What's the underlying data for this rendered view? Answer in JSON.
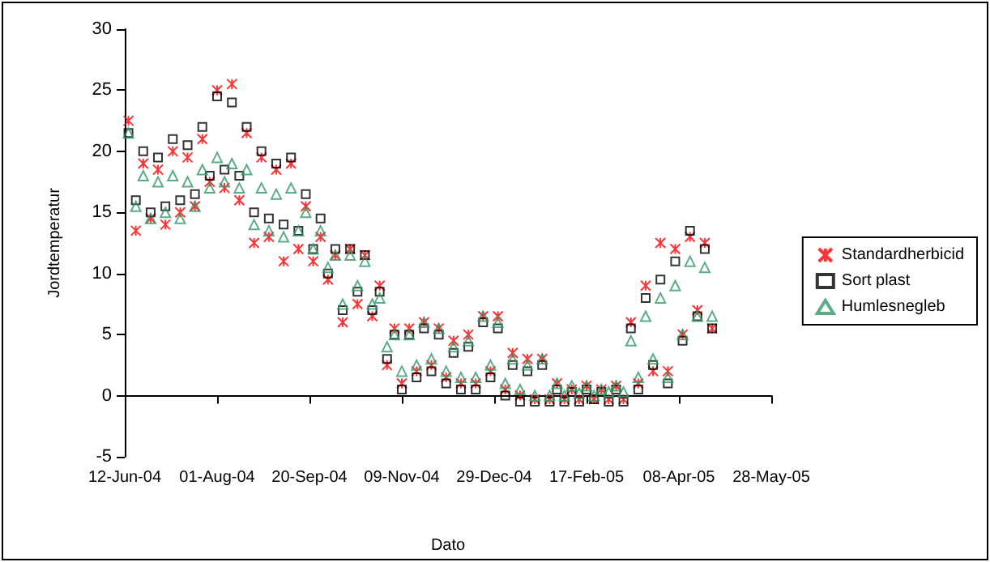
{
  "chart_data": {
    "type": "scatter",
    "xlabel": "Dato",
    "ylabel": "Jordtemperatur",
    "x": [
      "2004-06-14",
      "2004-06-18",
      "2004-06-22",
      "2004-06-26",
      "2004-06-30",
      "2004-07-04",
      "2004-07-08",
      "2004-07-12",
      "2004-07-16",
      "2004-07-20",
      "2004-07-24",
      "2004-07-28",
      "2004-08-01",
      "2004-08-05",
      "2004-08-09",
      "2004-08-13",
      "2004-08-17",
      "2004-08-21",
      "2004-08-25",
      "2004-08-29",
      "2004-09-02",
      "2004-09-06",
      "2004-09-10",
      "2004-09-14",
      "2004-09-18",
      "2004-09-22",
      "2004-09-26",
      "2004-09-30",
      "2004-10-04",
      "2004-10-08",
      "2004-10-12",
      "2004-10-16",
      "2004-10-20",
      "2004-10-24",
      "2004-10-28",
      "2004-11-01",
      "2004-11-05",
      "2004-11-09",
      "2004-11-13",
      "2004-11-17",
      "2004-11-21",
      "2004-11-25",
      "2004-11-29",
      "2004-12-03",
      "2004-12-07",
      "2004-12-11",
      "2004-12-15",
      "2004-12-19",
      "2004-12-23",
      "2004-12-27",
      "2004-12-31",
      "2005-01-04",
      "2005-01-08",
      "2005-01-12",
      "2005-01-16",
      "2005-01-20",
      "2005-01-24",
      "2005-01-28",
      "2005-02-01",
      "2005-02-05",
      "2005-02-09",
      "2005-02-13",
      "2005-02-17",
      "2005-02-21",
      "2005-02-25",
      "2005-03-01",
      "2005-03-05",
      "2005-03-09",
      "2005-03-13",
      "2005-03-17",
      "2005-03-21",
      "2005-03-25",
      "2005-03-29",
      "2005-04-02",
      "2005-04-06",
      "2005-04-10",
      "2005-04-14",
      "2005-04-18",
      "2005-04-22",
      "2005-04-26"
    ],
    "series": [
      {
        "name": "Standardherbicid",
        "color": "#ff0000",
        "marker": "cross",
        "values": [
          22.5,
          13.5,
          19,
          14.5,
          18.5,
          14,
          20,
          15,
          19.5,
          15.5,
          21,
          17.5,
          25,
          17,
          25.5,
          16,
          21.5,
          12.5,
          19.5,
          13,
          18.5,
          11,
          19,
          12,
          15.5,
          11,
          13,
          9.5,
          11.5,
          6,
          12,
          7.5,
          11.5,
          6.5,
          9,
          2.5,
          5.5,
          1,
          5.5,
          2,
          6,
          2.5,
          5.5,
          1.5,
          4.5,
          1,
          5,
          1,
          6.5,
          2,
          6.5,
          0.5,
          3.5,
          0,
          3,
          -0.3,
          3,
          -0.3,
          1,
          -0.3,
          0.5,
          -0.3,
          0.8,
          -0.3,
          0.5,
          -0.3,
          0.8,
          -0.3,
          6,
          1,
          9,
          2,
          12.5,
          2,
          12,
          5,
          13,
          7,
          12.5,
          5.5
        ]
      },
      {
        "name": "Sort plast",
        "color": "#000000",
        "marker": "square",
        "values": [
          21.5,
          16,
          20,
          15,
          19.5,
          15.5,
          21,
          16,
          20.5,
          16.5,
          22,
          18,
          24.5,
          18.5,
          24,
          18,
          22,
          15,
          20,
          14.5,
          19,
          14,
          19.5,
          13.5,
          16.5,
          12,
          14.5,
          10,
          12,
          7,
          12,
          8.5,
          11.5,
          7,
          8.5,
          3,
          5,
          0.5,
          5,
          1.5,
          5.5,
          2,
          5,
          1,
          3.5,
          0.5,
          4,
          0.5,
          6,
          1.5,
          5.5,
          0,
          2.5,
          -0.5,
          2,
          -0.5,
          2.5,
          -0.5,
          0.5,
          -0.5,
          0.3,
          -0.5,
          0.5,
          -0.3,
          0.3,
          -0.5,
          0.5,
          -0.5,
          5.5,
          0.5,
          8,
          2.5,
          9.5,
          1,
          11,
          4.5,
          13.5,
          6.5,
          12,
          5.5
        ]
      },
      {
        "name": "Humlesnegleb",
        "color": "#339966",
        "marker": "triangle",
        "values": [
          21.5,
          15.5,
          18,
          14.5,
          17.5,
          15,
          18,
          14.5,
          17.5,
          15.5,
          18.5,
          17,
          19.5,
          17.5,
          19,
          17,
          18.5,
          14,
          17,
          13.5,
          16.5,
          13,
          17,
          13.5,
          15,
          12,
          13.5,
          10.5,
          11.5,
          7.5,
          11.5,
          9,
          11,
          7.5,
          8,
          4,
          5,
          2,
          5,
          2.5,
          6,
          3,
          5.5,
          2,
          4,
          1.5,
          4.5,
          1.5,
          6.5,
          2.5,
          6,
          1,
          3,
          0.5,
          2.5,
          0,
          3,
          0,
          1,
          0,
          0.8,
          0.2,
          0.8,
          0,
          0.5,
          0.3,
          0.8,
          0.3,
          4.5,
          1.5,
          6.5,
          3,
          8,
          1.5,
          9,
          5,
          11,
          6.5,
          10.5,
          6.5
        ]
      }
    ],
    "xlim": [
      "2004-06-12",
      "2005-05-28"
    ],
    "xticks": [
      {
        "value": "2004-06-12",
        "label": "12-Jun-04"
      },
      {
        "value": "2004-08-01",
        "label": "01-Aug-04"
      },
      {
        "value": "2004-09-20",
        "label": "20-Sep-04"
      },
      {
        "value": "2004-11-09",
        "label": "09-Nov-04"
      },
      {
        "value": "2004-12-29",
        "label": "29-Dec-04"
      },
      {
        "value": "2005-02-17",
        "label": "17-Feb-05"
      },
      {
        "value": "2005-04-08",
        "label": "08-Apr-05"
      },
      {
        "value": "2005-05-28",
        "label": "28-May-05"
      }
    ],
    "ylim": [
      -5,
      30
    ],
    "yticks": [
      -5,
      0,
      5,
      10,
      15,
      20,
      25,
      30
    ],
    "legend": "right"
  }
}
